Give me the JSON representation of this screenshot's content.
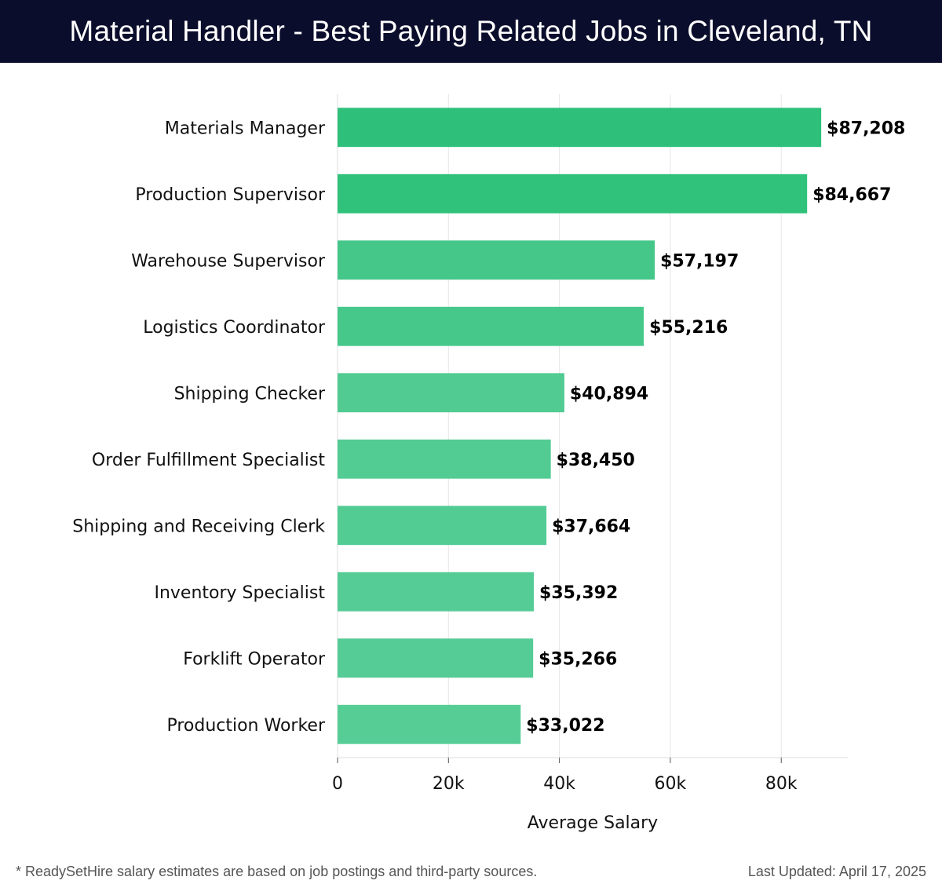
{
  "header": {
    "title": "Material Handler - Best Paying Related Jobs in Cleveland, TN"
  },
  "chart_data": {
    "type": "bar",
    "orientation": "horizontal",
    "categories": [
      "Materials Manager",
      "Production Supervisor",
      "Warehouse Supervisor",
      "Logistics Coordinator",
      "Shipping Checker",
      "Order Fulfillment Specialist",
      "Shipping and Receiving Clerk",
      "Inventory Specialist",
      "Forklift Operator",
      "Production Worker"
    ],
    "values": [
      87208,
      84667,
      57197,
      55216,
      40894,
      38450,
      37664,
      35392,
      35266,
      33022
    ],
    "value_labels": [
      "$87,208",
      "$84,667",
      "$57,197",
      "$55,216",
      "$40,894",
      "$38,450",
      "$37,664",
      "$35,392",
      "$35,266",
      "$33,022"
    ],
    "title": "Material Handler - Best Paying Related Jobs in Cleveland, TN",
    "xlabel": "Average Salary",
    "ylabel": "",
    "xlim": [
      0,
      92000
    ],
    "xticks": [
      0,
      20000,
      40000,
      60000,
      80000
    ],
    "xtick_labels": [
      "0",
      "20k",
      "40k",
      "60k",
      "80k"
    ],
    "grid": "vertical",
    "colors": {
      "bar_high": "#2ec07a",
      "bar_low": "#57cd96",
      "grid": "#e6e6e6"
    }
  },
  "footer": {
    "note": "* ReadySetHire salary estimates are based on job postings and third-party sources.",
    "updated": "Last Updated: April 17, 2025"
  }
}
